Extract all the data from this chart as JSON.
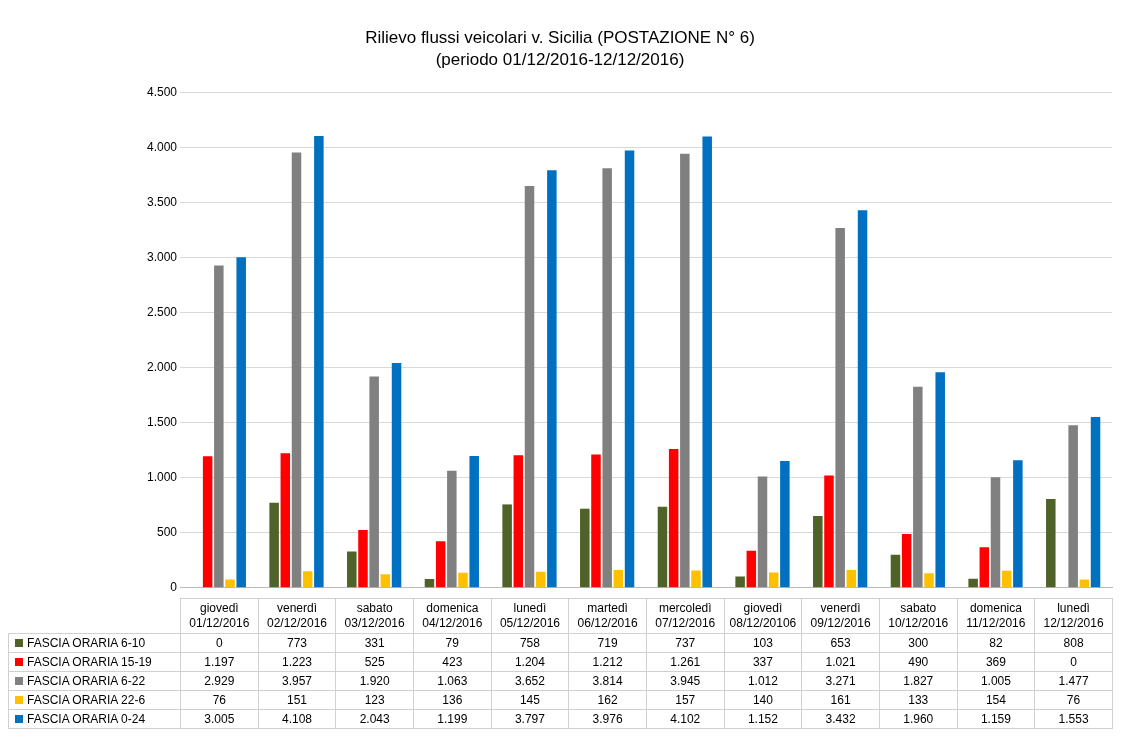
{
  "chart_data": {
    "type": "bar",
    "title": "Rilievo flussi veicolari v. Sicilia (POSTAZIONE N° 6)",
    "subtitle": "(periodo 01/12/2016-12/12/2016)",
    "categories": [
      "giovedì\n01/12/2016",
      "venerdì\n02/12/2016",
      "sabato\n03/12/2016",
      "domenica\n04/12/2016",
      "lunedì\n05/12/2016",
      "martedì\n06/12/2016",
      "mercoledì\n07/12/2016",
      "giovedì\n08/12/20106",
      "venerdì\n09/12/2016",
      "sabato\n10/12/2016",
      "domenica\n11/12/2016",
      "lunedì\n12/12/2016"
    ],
    "series": [
      {
        "name": "FASCIA ORARIA 6-10",
        "color": "#4f6228",
        "values": [
          0,
          773,
          331,
          79,
          758,
          719,
          737,
          103,
          653,
          300,
          82,
          808
        ],
        "value_labels": [
          "0",
          "773",
          "331",
          "79",
          "758",
          "719",
          "737",
          "103",
          "653",
          "300",
          "82",
          "808"
        ]
      },
      {
        "name": "FASCIA ORARIA 15-19",
        "color": "#ff0000",
        "values": [
          1197,
          1223,
          525,
          423,
          1204,
          1212,
          1261,
          337,
          1021,
          490,
          369,
          0
        ],
        "value_labels": [
          "1.197",
          "1.223",
          "525",
          "423",
          "1.204",
          "1.212",
          "1.261",
          "337",
          "1.021",
          "490",
          "369",
          "0"
        ]
      },
      {
        "name": "FASCIA ORARIA 6-22",
        "color": "#808080",
        "values": [
          2929,
          3957,
          1920,
          1063,
          3652,
          3814,
          3945,
          1012,
          3271,
          1827,
          1005,
          1477
        ],
        "value_labels": [
          "2.929",
          "3.957",
          "1.920",
          "1.063",
          "3.652",
          "3.814",
          "3.945",
          "1.012",
          "3.271",
          "1.827",
          "1.005",
          "1.477"
        ]
      },
      {
        "name": "FASCIA ORARIA 22-6",
        "color": "#ffc000",
        "values": [
          76,
          151,
          123,
          136,
          145,
          162,
          157,
          140,
          161,
          133,
          154,
          76
        ],
        "value_labels": [
          "76",
          "151",
          "123",
          "136",
          "145",
          "162",
          "157",
          "140",
          "161",
          "133",
          "154",
          "76"
        ]
      },
      {
        "name": "FASCIA ORARIA 0-24",
        "color": "#0070c0",
        "values": [
          3005,
          4108,
          2043,
          1199,
          3797,
          3976,
          4102,
          1152,
          3432,
          1960,
          1159,
          1553
        ],
        "value_labels": [
          "3.005",
          "4.108",
          "2.043",
          "1.199",
          "3.797",
          "3.976",
          "4.102",
          "1.152",
          "3.432",
          "1.960",
          "1.159",
          "1.553"
        ]
      }
    ],
    "ylim": [
      0,
      4500
    ],
    "yticks": [
      0,
      {
        "value": 500,
        "label": "500"
      },
      {
        "value": 1000,
        "label": "1.000"
      },
      {
        "value": 1500,
        "label": "1.500"
      },
      {
        "value": 2000,
        "label": "2.000"
      },
      {
        "value": 2500,
        "label": "2.500"
      },
      {
        "value": 3000,
        "label": "3.000"
      },
      {
        "value": 3500,
        "label": "3.500"
      },
      {
        "value": 4000,
        "label": "4.000"
      },
      {
        "value": 4500,
        "label": "4.500"
      }
    ],
    "grid": "y",
    "legend": "bottom"
  }
}
